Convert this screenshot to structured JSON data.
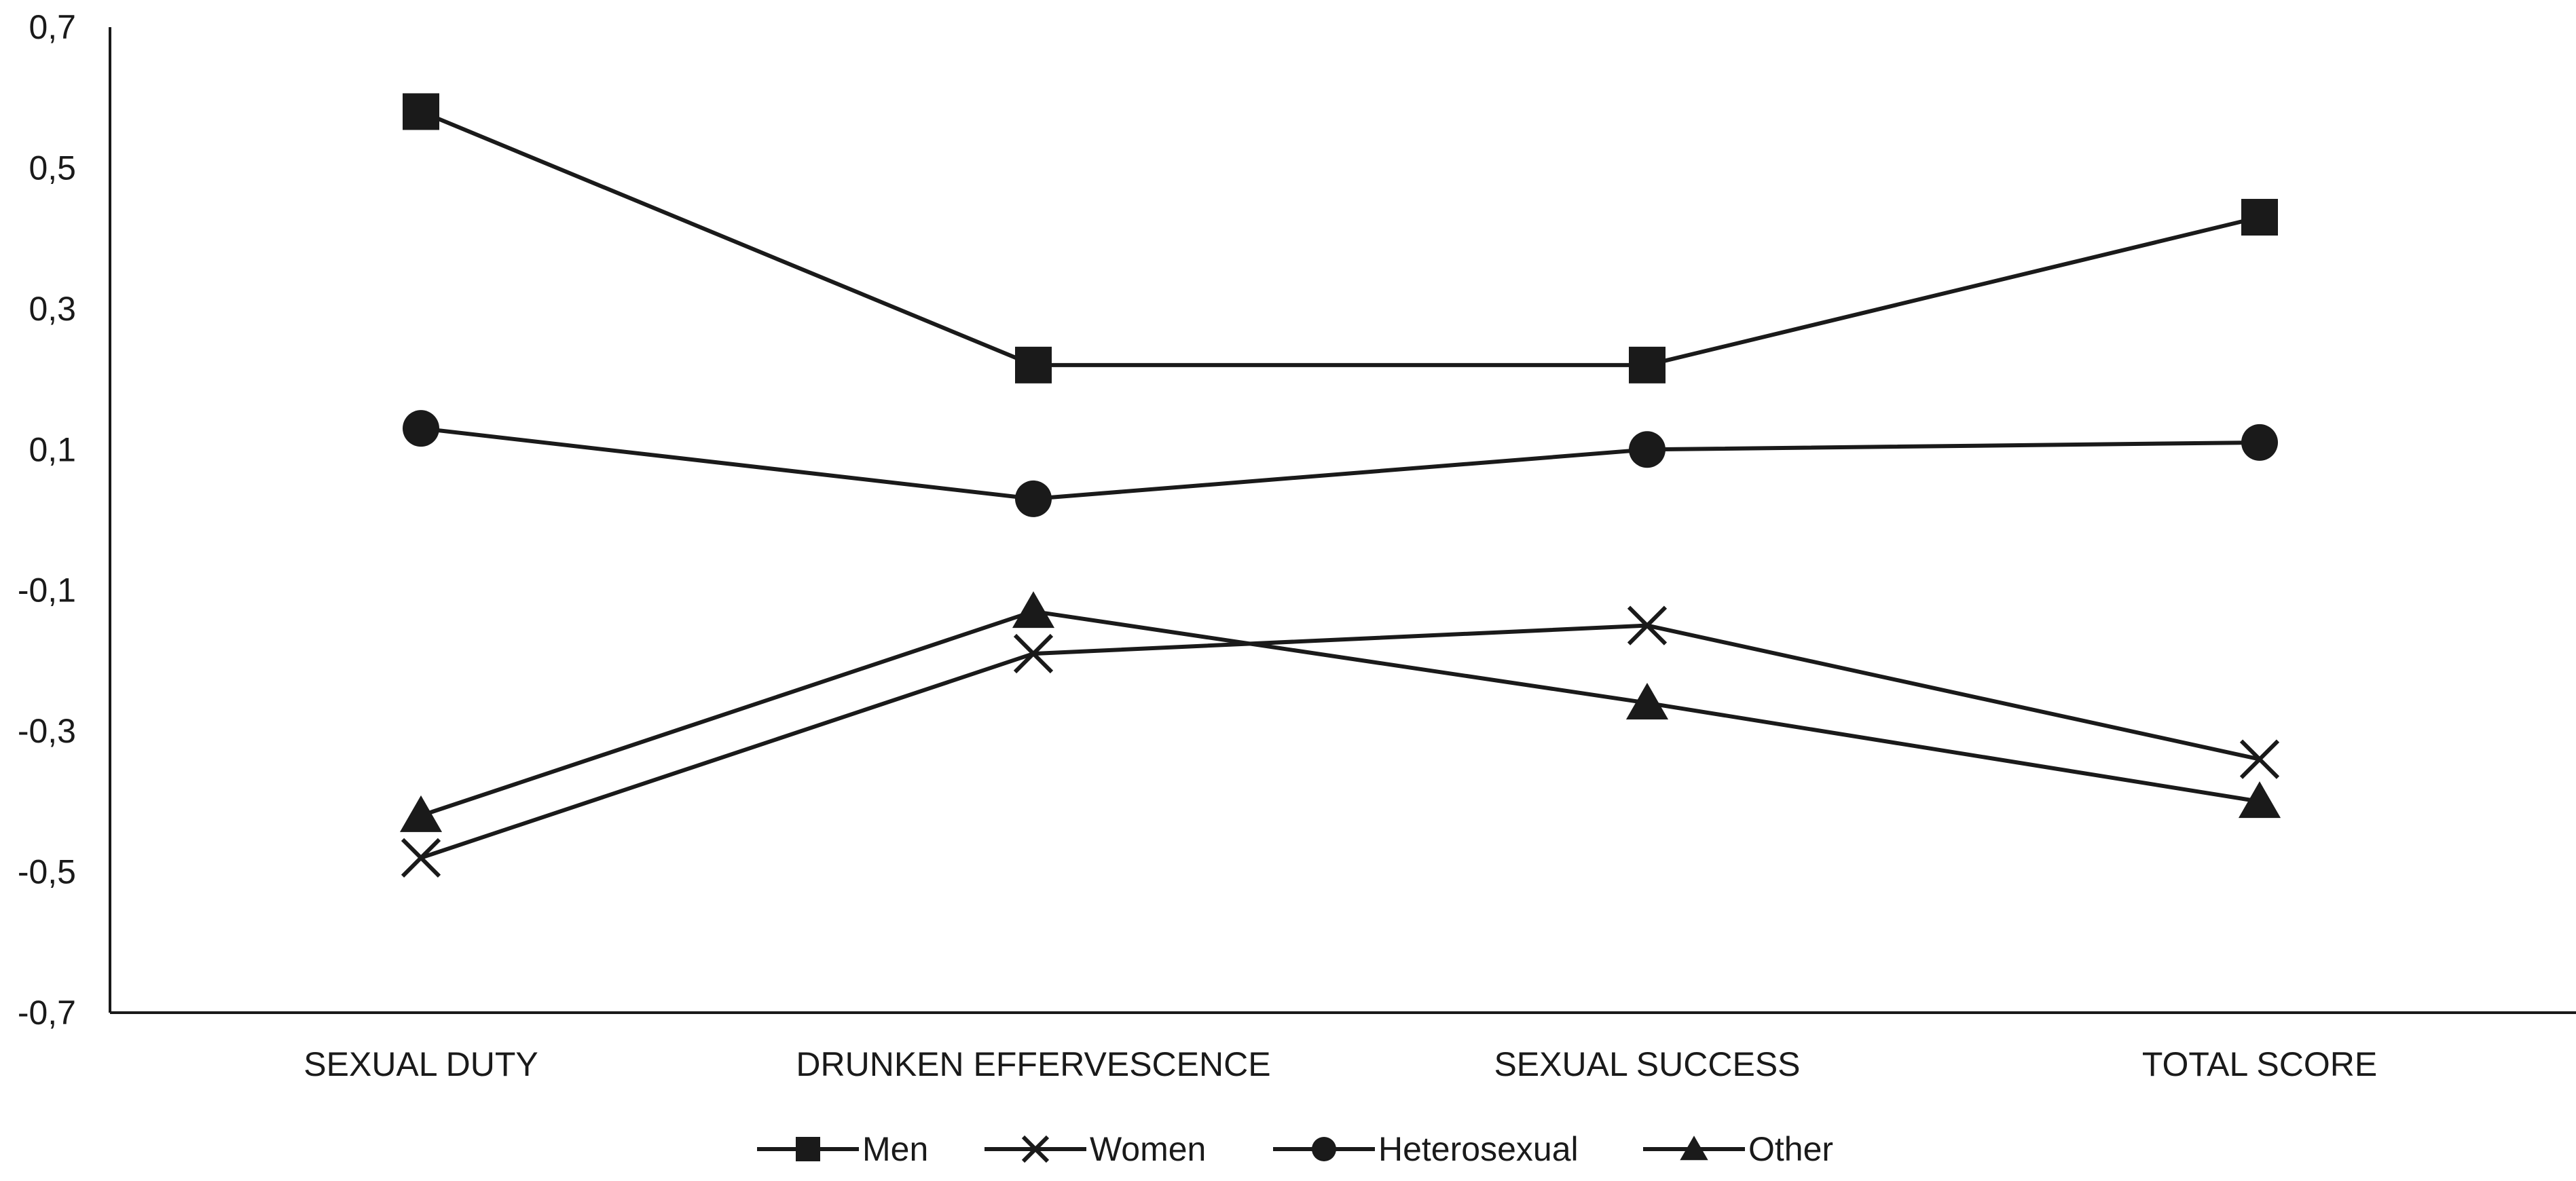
{
  "chart_data": {
    "type": "line",
    "categories": [
      "SEXUAL DUTY",
      "DRUNKEN EFFERVESCENCE",
      "SEXUAL SUCCESS",
      "TOTAL SCORE"
    ],
    "ylim": [
      -0.7,
      0.7
    ],
    "yticks": [
      -0.7,
      -0.5,
      -0.3,
      -0.1,
      0.1,
      0.3,
      0.5,
      0.7
    ],
    "ytick_labels": [
      "-0,7",
      "-0,5",
      "-0,3",
      "-0,1",
      "0,1",
      "0,3",
      "0,5",
      "0,7"
    ],
    "grid": false,
    "legend_position": "bottom",
    "series": [
      {
        "name": "Men",
        "marker": "square",
        "values": [
          0.58,
          0.22,
          0.22,
          0.43
        ]
      },
      {
        "name": "Women",
        "marker": "x",
        "values": [
          -0.48,
          -0.19,
          -0.15,
          -0.34
        ]
      },
      {
        "name": "Heterosexual",
        "marker": "circle",
        "values": [
          0.13,
          0.03,
          0.1,
          0.11
        ]
      },
      {
        "name": "Other",
        "marker": "triangle",
        "values": [
          -0.42,
          -0.13,
          -0.26,
          -0.4
        ]
      }
    ],
    "colors": {
      "line": "#1a1a1a",
      "axis": "#1a1a1a"
    }
  }
}
